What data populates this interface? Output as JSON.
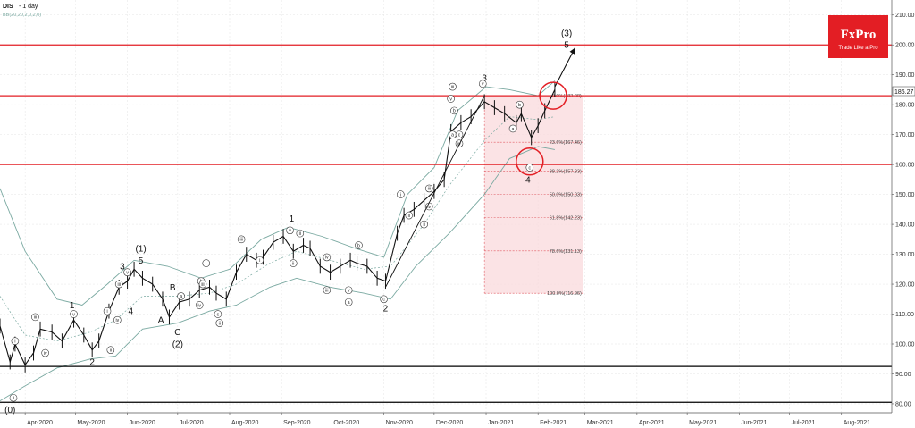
{
  "header": {
    "symbol": "DIS",
    "timeframe": "- 1 day",
    "indicator": "BB(20,20,2,0,2,0)"
  },
  "brand": {
    "name": "FxPro",
    "tagline": "Trade Like a Pro",
    "color": "#e31e24"
  },
  "colors": {
    "candle": "#111111",
    "resistance": "#e31e24",
    "support": "#000000",
    "bollinger": "#7aa9a1",
    "fib_zone": "#f9d9dc",
    "fib_line": "#e05a62",
    "arrow": "#111111"
  },
  "price_tag": "186.27",
  "chart_data": {
    "type": "line",
    "title": "",
    "xlabel": "",
    "ylabel": "",
    "ylim": [
      77,
      215
    ],
    "xlim": [
      "2020-03-17",
      "2021-08-31"
    ],
    "y_ticks": [
      "80.00",
      "90.00",
      "100.00",
      "110.00",
      "120.00",
      "130.00",
      "140.00",
      "150.00",
      "160.00",
      "170.00",
      "180.00",
      "190.00",
      "200.00",
      "210.00"
    ],
    "x_ticks": [
      {
        "label": "Apr-2020",
        "date": "2020-04-01"
      },
      {
        "label": "May-2020",
        "date": "2020-05-01"
      },
      {
        "label": "Jun-2020",
        "date": "2020-06-01"
      },
      {
        "label": "Jul-2020",
        "date": "2020-07-01"
      },
      {
        "label": "Aug-2020",
        "date": "2020-08-01"
      },
      {
        "label": "Sep-2020",
        "date": "2020-09-01"
      },
      {
        "label": "Oct-2020",
        "date": "2020-10-01"
      },
      {
        "label": "Nov-2020",
        "date": "2020-11-01"
      },
      {
        "label": "Dec-2020",
        "date": "2020-12-01"
      },
      {
        "label": "Jan-2021",
        "date": "2021-01-01"
      },
      {
        "label": "Feb-2021",
        "date": "2021-02-01"
      },
      {
        "label": "Mar-2021",
        "date": "2021-03-01"
      },
      {
        "label": "Apr-2021",
        "date": "2021-04-01"
      },
      {
        "label": "May-2021",
        "date": "2021-05-01"
      },
      {
        "label": "Jun-2021",
        "date": "2021-06-01"
      },
      {
        "label": "Jul-2021",
        "date": "2021-07-01"
      },
      {
        "label": "Aug-2021",
        "date": "2021-08-01"
      }
    ],
    "series": [
      {
        "key": "close",
        "points": [
          [
            "2020-03-17",
            106
          ],
          [
            "2020-03-23",
            94
          ],
          [
            "2020-03-26",
            100
          ],
          [
            "2020-04-01",
            93
          ],
          [
            "2020-04-06",
            97
          ],
          [
            "2020-04-10",
            105
          ],
          [
            "2020-04-17",
            104
          ],
          [
            "2020-04-23",
            101
          ],
          [
            "2020-04-30",
            108
          ],
          [
            "2020-05-06",
            103
          ],
          [
            "2020-05-11",
            98
          ],
          [
            "2020-05-15",
            101
          ],
          [
            "2020-05-21",
            111
          ],
          [
            "2020-05-27",
            119
          ],
          [
            "2020-06-01",
            121
          ],
          [
            "2020-06-05",
            125
          ],
          [
            "2020-06-10",
            122
          ],
          [
            "2020-06-16",
            120
          ],
          [
            "2020-06-22",
            115
          ],
          [
            "2020-06-26",
            109
          ],
          [
            "2020-07-02",
            114
          ],
          [
            "2020-07-08",
            115
          ],
          [
            "2020-07-14",
            118
          ],
          [
            "2020-07-20",
            119
          ],
          [
            "2020-07-24",
            117
          ],
          [
            "2020-07-30",
            115
          ],
          [
            "2020-08-05",
            124
          ],
          [
            "2020-08-11",
            130
          ],
          [
            "2020-08-17",
            128
          ],
          [
            "2020-08-21",
            129
          ],
          [
            "2020-08-27",
            134
          ],
          [
            "2020-09-02",
            136
          ],
          [
            "2020-09-08",
            131
          ],
          [
            "2020-09-14",
            133
          ],
          [
            "2020-09-18",
            132
          ],
          [
            "2020-09-24",
            126
          ],
          [
            "2020-09-30",
            124
          ],
          [
            "2020-10-06",
            126
          ],
          [
            "2020-10-12",
            128
          ],
          [
            "2020-10-16",
            127
          ],
          [
            "2020-10-22",
            126
          ],
          [
            "2020-10-28",
            122
          ],
          [
            "2020-11-02",
            121
          ],
          [
            "2020-11-09",
            137
          ],
          [
            "2020-11-13",
            143
          ],
          [
            "2020-11-19",
            145
          ],
          [
            "2020-11-25",
            148
          ],
          [
            "2020-12-01",
            151
          ],
          [
            "2020-12-07",
            155
          ],
          [
            "2020-12-11",
            171
          ],
          [
            "2020-12-17",
            174
          ],
          [
            "2020-12-23",
            176
          ],
          [
            "2020-12-31",
            181
          ],
          [
            "2021-01-06",
            179
          ],
          [
            "2021-01-12",
            177
          ],
          [
            "2021-01-19",
            174
          ],
          [
            "2021-01-22",
            177
          ],
          [
            "2021-01-28",
            169
          ],
          [
            "2021-02-01",
            173
          ],
          [
            "2021-02-05",
            178
          ],
          [
            "2021-02-11",
            185
          ]
        ]
      },
      {
        "key": "bb_upper",
        "points": [
          [
            "2020-03-17",
            152
          ],
          [
            "2020-04-01",
            131
          ],
          [
            "2020-04-20",
            115
          ],
          [
            "2020-05-05",
            113
          ],
          [
            "2020-05-20",
            120
          ],
          [
            "2020-06-05",
            128
          ],
          [
            "2020-06-25",
            126
          ],
          [
            "2020-07-15",
            122
          ],
          [
            "2020-08-01",
            125
          ],
          [
            "2020-08-20",
            135
          ],
          [
            "2020-09-05",
            139
          ],
          [
            "2020-09-25",
            136
          ],
          [
            "2020-10-15",
            132
          ],
          [
            "2020-11-01",
            129
          ],
          [
            "2020-11-15",
            150
          ],
          [
            "2020-12-01",
            159
          ],
          [
            "2020-12-15",
            178
          ],
          [
            "2021-01-01",
            186
          ],
          [
            "2021-01-15",
            185
          ],
          [
            "2021-02-01",
            183
          ],
          [
            "2021-02-11",
            188
          ]
        ]
      },
      {
        "key": "bb_middle",
        "points": [
          [
            "2020-03-17",
            116
          ],
          [
            "2020-04-01",
            103
          ],
          [
            "2020-04-20",
            101
          ],
          [
            "2020-05-10",
            104
          ],
          [
            "2020-05-25",
            108
          ],
          [
            "2020-06-10",
            116
          ],
          [
            "2020-07-01",
            116
          ],
          [
            "2020-07-20",
            117
          ],
          [
            "2020-08-05",
            120
          ],
          [
            "2020-08-25",
            127
          ],
          [
            "2020-09-10",
            131
          ],
          [
            "2020-09-30",
            128
          ],
          [
            "2020-10-20",
            125
          ],
          [
            "2020-11-05",
            126
          ],
          [
            "2020-11-25",
            140
          ],
          [
            "2020-12-10",
            153
          ],
          [
            "2020-12-31",
            168
          ],
          [
            "2021-01-15",
            176
          ],
          [
            "2021-02-01",
            175
          ],
          [
            "2021-02-11",
            176
          ]
        ]
      },
      {
        "key": "bb_lower",
        "points": [
          [
            "2020-03-17",
            81
          ],
          [
            "2020-04-01",
            86
          ],
          [
            "2020-04-20",
            92
          ],
          [
            "2020-05-10",
            95
          ],
          [
            "2020-05-25",
            96
          ],
          [
            "2020-06-10",
            105
          ],
          [
            "2020-07-01",
            107
          ],
          [
            "2020-07-20",
            111
          ],
          [
            "2020-08-05",
            113
          ],
          [
            "2020-08-25",
            119
          ],
          [
            "2020-09-10",
            122
          ],
          [
            "2020-09-30",
            119
          ],
          [
            "2020-10-20",
            117
          ],
          [
            "2020-11-05",
            115
          ],
          [
            "2020-11-20",
            126
          ],
          [
            "2020-12-10",
            137
          ],
          [
            "2020-12-31",
            150
          ],
          [
            "2021-01-15",
            162
          ],
          [
            "2021-02-01",
            166
          ],
          [
            "2021-02-11",
            165
          ]
        ]
      }
    ],
    "horizontal_levels": [
      {
        "price": 200,
        "color": "#e31e24",
        "kind": "resistance"
      },
      {
        "price": 183,
        "color": "#e31e24",
        "kind": "resistance"
      },
      {
        "price": 160,
        "color": "#e31e24",
        "kind": "resistance"
      },
      {
        "price": 92.5,
        "color": "#000000",
        "kind": "support"
      },
      {
        "price": 80.5,
        "color": "#000000",
        "kind": "support"
      }
    ],
    "fibonacci": {
      "x_start": "2020-12-31",
      "x_end": "2021-02-28",
      "levels": [
        {
          "label": "0.0%(183.08)",
          "price": 183.08
        },
        {
          "label": "23.6%(167.46)",
          "price": 167.46
        },
        {
          "label": "38.2%(157.83)",
          "price": 157.83
        },
        {
          "label": "50.0%(150.03)",
          "price": 150.03
        },
        {
          "label": "61.8%(142.23)",
          "price": 142.23
        },
        {
          "label": "78.6%(131.13)",
          "price": 131.13
        },
        {
          "label": "100.0%(116.96)",
          "price": 116.96
        }
      ]
    },
    "wave_labels": [
      {
        "text": "(0)",
        "x": "2020-03-23",
        "y": 78,
        "size": "big"
      },
      {
        "text": "1",
        "x": "2020-04-29",
        "y": 113,
        "size": "big"
      },
      {
        "text": "2",
        "x": "2020-05-11",
        "y": 94,
        "size": "big"
      },
      {
        "text": "3",
        "x": "2020-05-29",
        "y": 126,
        "size": "big"
      },
      {
        "text": "4",
        "x": "2020-06-03",
        "y": 111,
        "size": "big"
      },
      {
        "text": "(1)",
        "x": "2020-06-09",
        "y": 132,
        "size": "big"
      },
      {
        "text": "5",
        "x": "2020-06-09",
        "y": 128,
        "size": "big"
      },
      {
        "text": "A",
        "x": "2020-06-21",
        "y": 108,
        "size": "big"
      },
      {
        "text": "B",
        "x": "2020-06-28",
        "y": 119,
        "size": "big"
      },
      {
        "text": "C",
        "x": "2020-07-01",
        "y": 104,
        "size": "big"
      },
      {
        "text": "(2)",
        "x": "2020-07-01",
        "y": 100,
        "size": "big"
      },
      {
        "text": "1",
        "x": "2020-09-07",
        "y": 142,
        "size": "big"
      },
      {
        "text": "2",
        "x": "2020-11-02",
        "y": 112,
        "size": "big"
      },
      {
        "text": "3",
        "x": "2020-12-31",
        "y": 189,
        "size": "big"
      },
      {
        "text": "4",
        "x": "2021-01-26",
        "y": 155,
        "size": "big"
      },
      {
        "text": "(3)",
        "x": "2021-02-18",
        "y": 204,
        "size": "big"
      },
      {
        "text": "5",
        "x": "2021-02-18",
        "y": 200,
        "size": "big"
      },
      {
        "text": "i",
        "x": "2020-03-26",
        "y": 101,
        "size": "circ"
      },
      {
        "text": "ii",
        "x": "2020-03-25",
        "y": 82,
        "size": "circ"
      },
      {
        "text": "iii",
        "x": "2020-04-07",
        "y": 109,
        "size": "circ"
      },
      {
        "text": "iv",
        "x": "2020-04-13",
        "y": 97,
        "size": "circ"
      },
      {
        "text": "v",
        "x": "2020-04-30",
        "y": 110,
        "size": "circ"
      },
      {
        "text": "i",
        "x": "2020-05-20",
        "y": 111,
        "size": "circ"
      },
      {
        "text": "ii",
        "x": "2020-05-22",
        "y": 98,
        "size": "circ"
      },
      {
        "text": "iii",
        "x": "2020-05-27",
        "y": 120,
        "size": "circ"
      },
      {
        "text": "iv",
        "x": "2020-05-26",
        "y": 108,
        "size": "circ"
      },
      {
        "text": "v",
        "x": "2020-06-01",
        "y": 124,
        "size": "circ"
      },
      {
        "text": "a",
        "x": "2020-07-03",
        "y": 116,
        "size": "circ"
      },
      {
        "text": "b",
        "x": "2020-07-15",
        "y": 121,
        "size": "circ"
      },
      {
        "text": "c",
        "x": "2020-07-25",
        "y": 110,
        "size": "circ"
      },
      {
        "text": "i",
        "x": "2020-07-18",
        "y": 127,
        "size": "circ"
      },
      {
        "text": "ii",
        "x": "2020-07-26",
        "y": 107,
        "size": "circ"
      },
      {
        "text": "iii",
        "x": "2020-07-16",
        "y": 120,
        "size": "circ"
      },
      {
        "text": "iv",
        "x": "2020-07-14",
        "y": 113,
        "size": "circ"
      },
      {
        "text": "iii",
        "x": "2020-08-08",
        "y": 135,
        "size": "circ"
      },
      {
        "text": "v",
        "x": "2020-09-06",
        "y": 138,
        "size": "circ"
      },
      {
        "text": "ii",
        "x": "2020-09-12",
        "y": 137,
        "size": "circ"
      },
      {
        "text": "i",
        "x": "2020-08-19",
        "y": 128,
        "size": "circ"
      },
      {
        "text": "ii",
        "x": "2020-09-08",
        "y": 127,
        "size": "circ"
      },
      {
        "text": "iv",
        "x": "2020-09-28",
        "y": 129,
        "size": "circ"
      },
      {
        "text": "iii",
        "x": "2020-09-28",
        "y": 118,
        "size": "circ"
      },
      {
        "text": "v",
        "x": "2020-10-11",
        "y": 118,
        "size": "circ"
      },
      {
        "text": "a",
        "x": "2020-10-11",
        "y": 114,
        "size": "circ"
      },
      {
        "text": "b",
        "x": "2020-10-17",
        "y": 133,
        "size": "circ"
      },
      {
        "text": "c",
        "x": "2020-11-01",
        "y": 115,
        "size": "circ"
      },
      {
        "text": "i",
        "x": "2020-11-11",
        "y": 150,
        "size": "circ"
      },
      {
        "text": "ii",
        "x": "2020-11-16",
        "y": 143,
        "size": "circ"
      },
      {
        "text": "iii",
        "x": "2020-11-28",
        "y": 152,
        "size": "circ"
      },
      {
        "text": "iv",
        "x": "2020-11-28",
        "y": 146,
        "size": "circ"
      },
      {
        "text": "ii",
        "x": "2020-11-25",
        "y": 140,
        "size": "circ"
      },
      {
        "text": "iii",
        "x": "2020-12-12",
        "y": 186,
        "size": "circ"
      },
      {
        "text": "v",
        "x": "2020-12-11",
        "y": 182,
        "size": "circ"
      },
      {
        "text": "b",
        "x": "2020-12-13",
        "y": 178,
        "size": "circ"
      },
      {
        "text": "a",
        "x": "2020-12-12",
        "y": 170,
        "size": "circ"
      },
      {
        "text": "c",
        "x": "2020-12-16",
        "y": 170,
        "size": "circ"
      },
      {
        "text": "iv",
        "x": "2020-12-16",
        "y": 167,
        "size": "circ"
      },
      {
        "text": "v",
        "x": "2020-12-30",
        "y": 187,
        "size": "circ"
      },
      {
        "text": "b",
        "x": "2021-01-21",
        "y": 180,
        "size": "circ"
      },
      {
        "text": "a",
        "x": "2021-01-17",
        "y": 172,
        "size": "circ"
      },
      {
        "text": "c",
        "x": "2021-01-27",
        "y": 159,
        "size": "circ"
      }
    ]
  }
}
